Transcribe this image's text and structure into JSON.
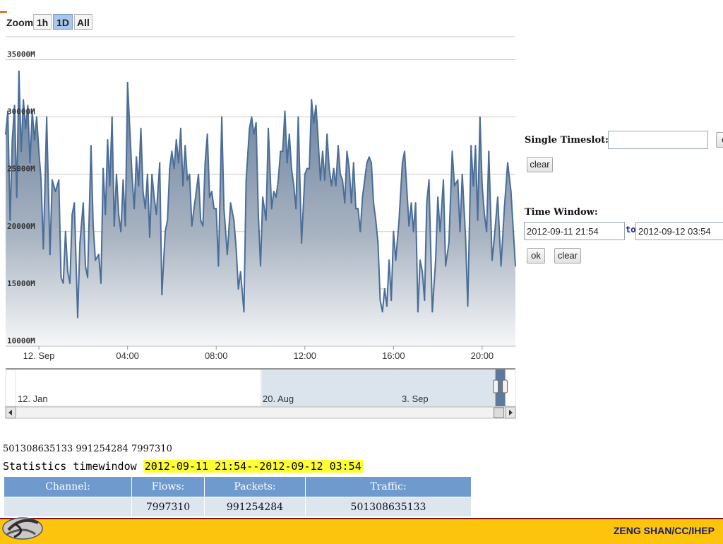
{
  "zoom": {
    "label": "Zoom",
    "buttons": [
      {
        "label": "1h",
        "selected": false
      },
      {
        "label": "1D",
        "selected": true
      },
      {
        "label": "All",
        "selected": false
      }
    ]
  },
  "chart_data": {
    "type": "area",
    "y_ticks": [
      "35000M",
      "30000M",
      "25000M",
      "20000M",
      "15000M",
      "10000M"
    ],
    "y_tick_values": [
      35000,
      30000,
      25000,
      20000,
      15000,
      10000
    ],
    "ylim": [
      10000,
      37000
    ],
    "x_ticks": [
      "12. Sep",
      "04:00",
      "08:00",
      "12:00",
      "16:00",
      "20:00"
    ],
    "x_tick_hours": [
      0,
      4,
      8,
      12,
      16,
      20
    ],
    "x_start_hour": -1.5,
    "x_end_hour": 21.5,
    "unit": "M",
    "series": [
      {
        "values": [
          [
            -1.5,
            28500
          ],
          [
            -1.4,
            30500
          ],
          [
            -1.3,
            21000
          ],
          [
            -1.2,
            28000
          ],
          [
            -1.1,
            31000
          ],
          [
            -1.0,
            23000
          ],
          [
            -0.9,
            34000
          ],
          [
            -0.8,
            27000
          ],
          [
            -0.7,
            31500
          ],
          [
            -0.6,
            29000
          ],
          [
            -0.5,
            31000
          ],
          [
            -0.4,
            26000
          ],
          [
            -0.3,
            30500
          ],
          [
            -0.2,
            28000
          ],
          [
            -0.1,
            30000
          ],
          [
            0.0,
            27000
          ],
          [
            0.1,
            24500
          ],
          [
            0.2,
            18500
          ],
          [
            0.35,
            30000
          ],
          [
            0.5,
            18000
          ],
          [
            0.6,
            24500
          ],
          [
            0.75,
            23500
          ],
          [
            0.9,
            24500
          ],
          [
            1.0,
            16000
          ],
          [
            1.1,
            15500
          ],
          [
            1.2,
            20000
          ],
          [
            1.3,
            16500
          ],
          [
            1.4,
            15500
          ],
          [
            1.5,
            21500
          ],
          [
            1.6,
            22500
          ],
          [
            1.75,
            12500
          ],
          [
            1.85,
            19000
          ],
          [
            2.0,
            22500
          ],
          [
            2.1,
            17000
          ],
          [
            2.2,
            16000
          ],
          [
            2.35,
            27500
          ],
          [
            2.45,
            20500
          ],
          [
            2.55,
            17500
          ],
          [
            2.7,
            18000
          ],
          [
            2.8,
            15500
          ],
          [
            2.9,
            25500
          ],
          [
            3.0,
            21500
          ],
          [
            3.1,
            28000
          ],
          [
            3.2,
            24000
          ],
          [
            3.3,
            30000
          ],
          [
            3.4,
            20500
          ],
          [
            3.5,
            25000
          ],
          [
            3.6,
            21500
          ],
          [
            3.7,
            20000
          ],
          [
            3.8,
            24500
          ],
          [
            3.9,
            20500
          ],
          [
            4.0,
            33000
          ],
          [
            4.2,
            25000
          ],
          [
            4.3,
            22000
          ],
          [
            4.4,
            26500
          ],
          [
            4.5,
            24000
          ],
          [
            4.6,
            29000
          ],
          [
            4.7,
            23500
          ],
          [
            4.8,
            22000
          ],
          [
            4.9,
            25000
          ],
          [
            5.0,
            19500
          ],
          [
            5.1,
            25000
          ],
          [
            5.2,
            23000
          ],
          [
            5.3,
            21500
          ],
          [
            5.45,
            26000
          ],
          [
            5.55,
            14500
          ],
          [
            5.7,
            20000
          ],
          [
            5.8,
            21000
          ],
          [
            5.9,
            25500
          ],
          [
            6.0,
            27000
          ],
          [
            6.1,
            25500
          ],
          [
            6.2,
            28000
          ],
          [
            6.3,
            26000
          ],
          [
            6.4,
            29000
          ],
          [
            6.5,
            24000
          ],
          [
            6.6,
            27500
          ],
          [
            6.7,
            24500
          ],
          [
            6.8,
            25000
          ],
          [
            6.9,
            20500
          ],
          [
            7.0,
            22000
          ],
          [
            7.1,
            23500
          ],
          [
            7.2,
            25000
          ],
          [
            7.3,
            21000
          ],
          [
            7.4,
            20500
          ],
          [
            7.5,
            26000
          ],
          [
            7.6,
            28500
          ],
          [
            7.7,
            23000
          ],
          [
            7.8,
            23500
          ],
          [
            7.9,
            22000
          ],
          [
            8.0,
            22000
          ],
          [
            8.1,
            17000
          ],
          [
            8.25,
            30000
          ],
          [
            8.35,
            22000
          ],
          [
            8.5,
            18000
          ],
          [
            8.65,
            22500
          ],
          [
            8.8,
            21000
          ],
          [
            8.9,
            18500
          ],
          [
            9.0,
            15000
          ],
          [
            9.1,
            16500
          ],
          [
            9.25,
            13000
          ],
          [
            9.35,
            24500
          ],
          [
            9.5,
            29000
          ],
          [
            9.6,
            30000
          ],
          [
            9.7,
            28500
          ],
          [
            9.8,
            29500
          ],
          [
            9.9,
            21500
          ],
          [
            10.0,
            17000
          ],
          [
            10.1,
            23000
          ],
          [
            10.25,
            21000
          ],
          [
            10.35,
            29000
          ],
          [
            10.5,
            22000
          ],
          [
            10.6,
            23500
          ],
          [
            10.7,
            23000
          ],
          [
            10.8,
            24500
          ],
          [
            10.9,
            27000
          ],
          [
            11.0,
            27000
          ],
          [
            11.1,
            30500
          ],
          [
            11.2,
            26000
          ],
          [
            11.3,
            28500
          ],
          [
            11.4,
            25500
          ],
          [
            11.5,
            24000
          ],
          [
            11.6,
            22000
          ],
          [
            11.7,
            30000
          ],
          [
            11.85,
            19000
          ],
          [
            12.0,
            25000
          ],
          [
            12.1,
            25500
          ],
          [
            12.2,
            25500
          ],
          [
            12.3,
            31500
          ],
          [
            12.4,
            29500
          ],
          [
            12.5,
            31000
          ],
          [
            12.6,
            28000
          ],
          [
            12.7,
            24500
          ],
          [
            12.8,
            27000
          ],
          [
            12.9,
            24500
          ],
          [
            13.0,
            28500
          ],
          [
            13.1,
            25500
          ],
          [
            13.2,
            24000
          ],
          [
            13.3,
            25500
          ],
          [
            13.4,
            24000
          ],
          [
            13.5,
            27500
          ],
          [
            13.6,
            25000
          ],
          [
            13.7,
            24500
          ],
          [
            13.8,
            22500
          ],
          [
            13.9,
            27000
          ],
          [
            14.0,
            25500
          ],
          [
            14.1,
            22500
          ],
          [
            14.2,
            26000
          ],
          [
            14.3,
            22000
          ],
          [
            14.4,
            22000
          ],
          [
            14.5,
            20000
          ],
          [
            14.6,
            23000
          ],
          [
            14.7,
            24500
          ],
          [
            14.8,
            26000
          ],
          [
            14.9,
            26500
          ],
          [
            15.0,
            26000
          ],
          [
            15.1,
            22500
          ],
          [
            15.2,
            21000
          ],
          [
            15.3,
            19000
          ],
          [
            15.4,
            14000
          ],
          [
            15.5,
            13000
          ],
          [
            15.6,
            15000
          ],
          [
            15.7,
            13500
          ],
          [
            15.8,
            17500
          ],
          [
            15.9,
            14000
          ],
          [
            16.0,
            20000
          ],
          [
            16.1,
            17500
          ],
          [
            16.25,
            21000
          ],
          [
            16.4,
            26000
          ],
          [
            16.5,
            27000
          ],
          [
            16.7,
            20500
          ],
          [
            16.8,
            22500
          ],
          [
            16.9,
            20000
          ],
          [
            17.0,
            22500
          ],
          [
            17.1,
            13000
          ],
          [
            17.2,
            17500
          ],
          [
            17.3,
            16500
          ],
          [
            17.4,
            14000
          ],
          [
            17.5,
            22500
          ],
          [
            17.6,
            24500
          ],
          [
            17.75,
            13000
          ],
          [
            17.9,
            17500
          ],
          [
            18.0,
            23000
          ],
          [
            18.1,
            20000
          ],
          [
            18.25,
            24500
          ],
          [
            18.35,
            17000
          ],
          [
            18.5,
            19000
          ],
          [
            18.65,
            27000
          ],
          [
            18.75,
            24000
          ],
          [
            18.9,
            24500
          ],
          [
            19.0,
            20000
          ],
          [
            19.1,
            25000
          ],
          [
            19.25,
            19500
          ],
          [
            19.35,
            13500
          ],
          [
            19.5,
            27500
          ],
          [
            19.6,
            24000
          ],
          [
            19.7,
            27500
          ],
          [
            19.8,
            21000
          ],
          [
            19.9,
            30000
          ],
          [
            20.0,
            24000
          ],
          [
            20.1,
            21500
          ],
          [
            20.2,
            20000
          ],
          [
            20.3,
            27000
          ],
          [
            20.45,
            17500
          ],
          [
            20.55,
            19500
          ],
          [
            20.7,
            23000
          ],
          [
            20.85,
            17000
          ],
          [
            21.0,
            22000
          ],
          [
            21.15,
            26000
          ],
          [
            21.3,
            23500
          ],
          [
            21.5,
            17000
          ]
        ]
      }
    ],
    "navigator": {
      "x_ticks": [
        "12. Jan",
        "20. Aug",
        "3. Sep"
      ],
      "selected_range_fraction": [
        0.502,
        0.98
      ]
    }
  },
  "single_timeslot": {
    "label": "Single Timeslot:",
    "value": "",
    "ok_label": "ok",
    "clear_label": "clear"
  },
  "time_window": {
    "label": "Time Window:",
    "from_value": "2012-09-11 21:54",
    "to_label": "to",
    "to_value": "2012-09-12 03:54",
    "ok_label": "ok",
    "clear_label": "clear"
  },
  "stats": {
    "summary": "501308635133 991254284 7997310",
    "title_prefix": "Statistics timewindow ",
    "title_range": "2012-09-11 21:54--2012-09-12 03:54",
    "columns": [
      "Channel:",
      "Flows:",
      "Packets:",
      "Traffic:"
    ],
    "row": [
      "",
      "7997310",
      "991254284",
      "501308635133"
    ]
  },
  "footer": {
    "text": "ZENG SHAN/CC/IHEP"
  },
  "colors": {
    "line": "#4a6d99",
    "footer_bg": "#fcc40d",
    "table_header": "#6e9acd",
    "highlight": "#ffff33"
  }
}
